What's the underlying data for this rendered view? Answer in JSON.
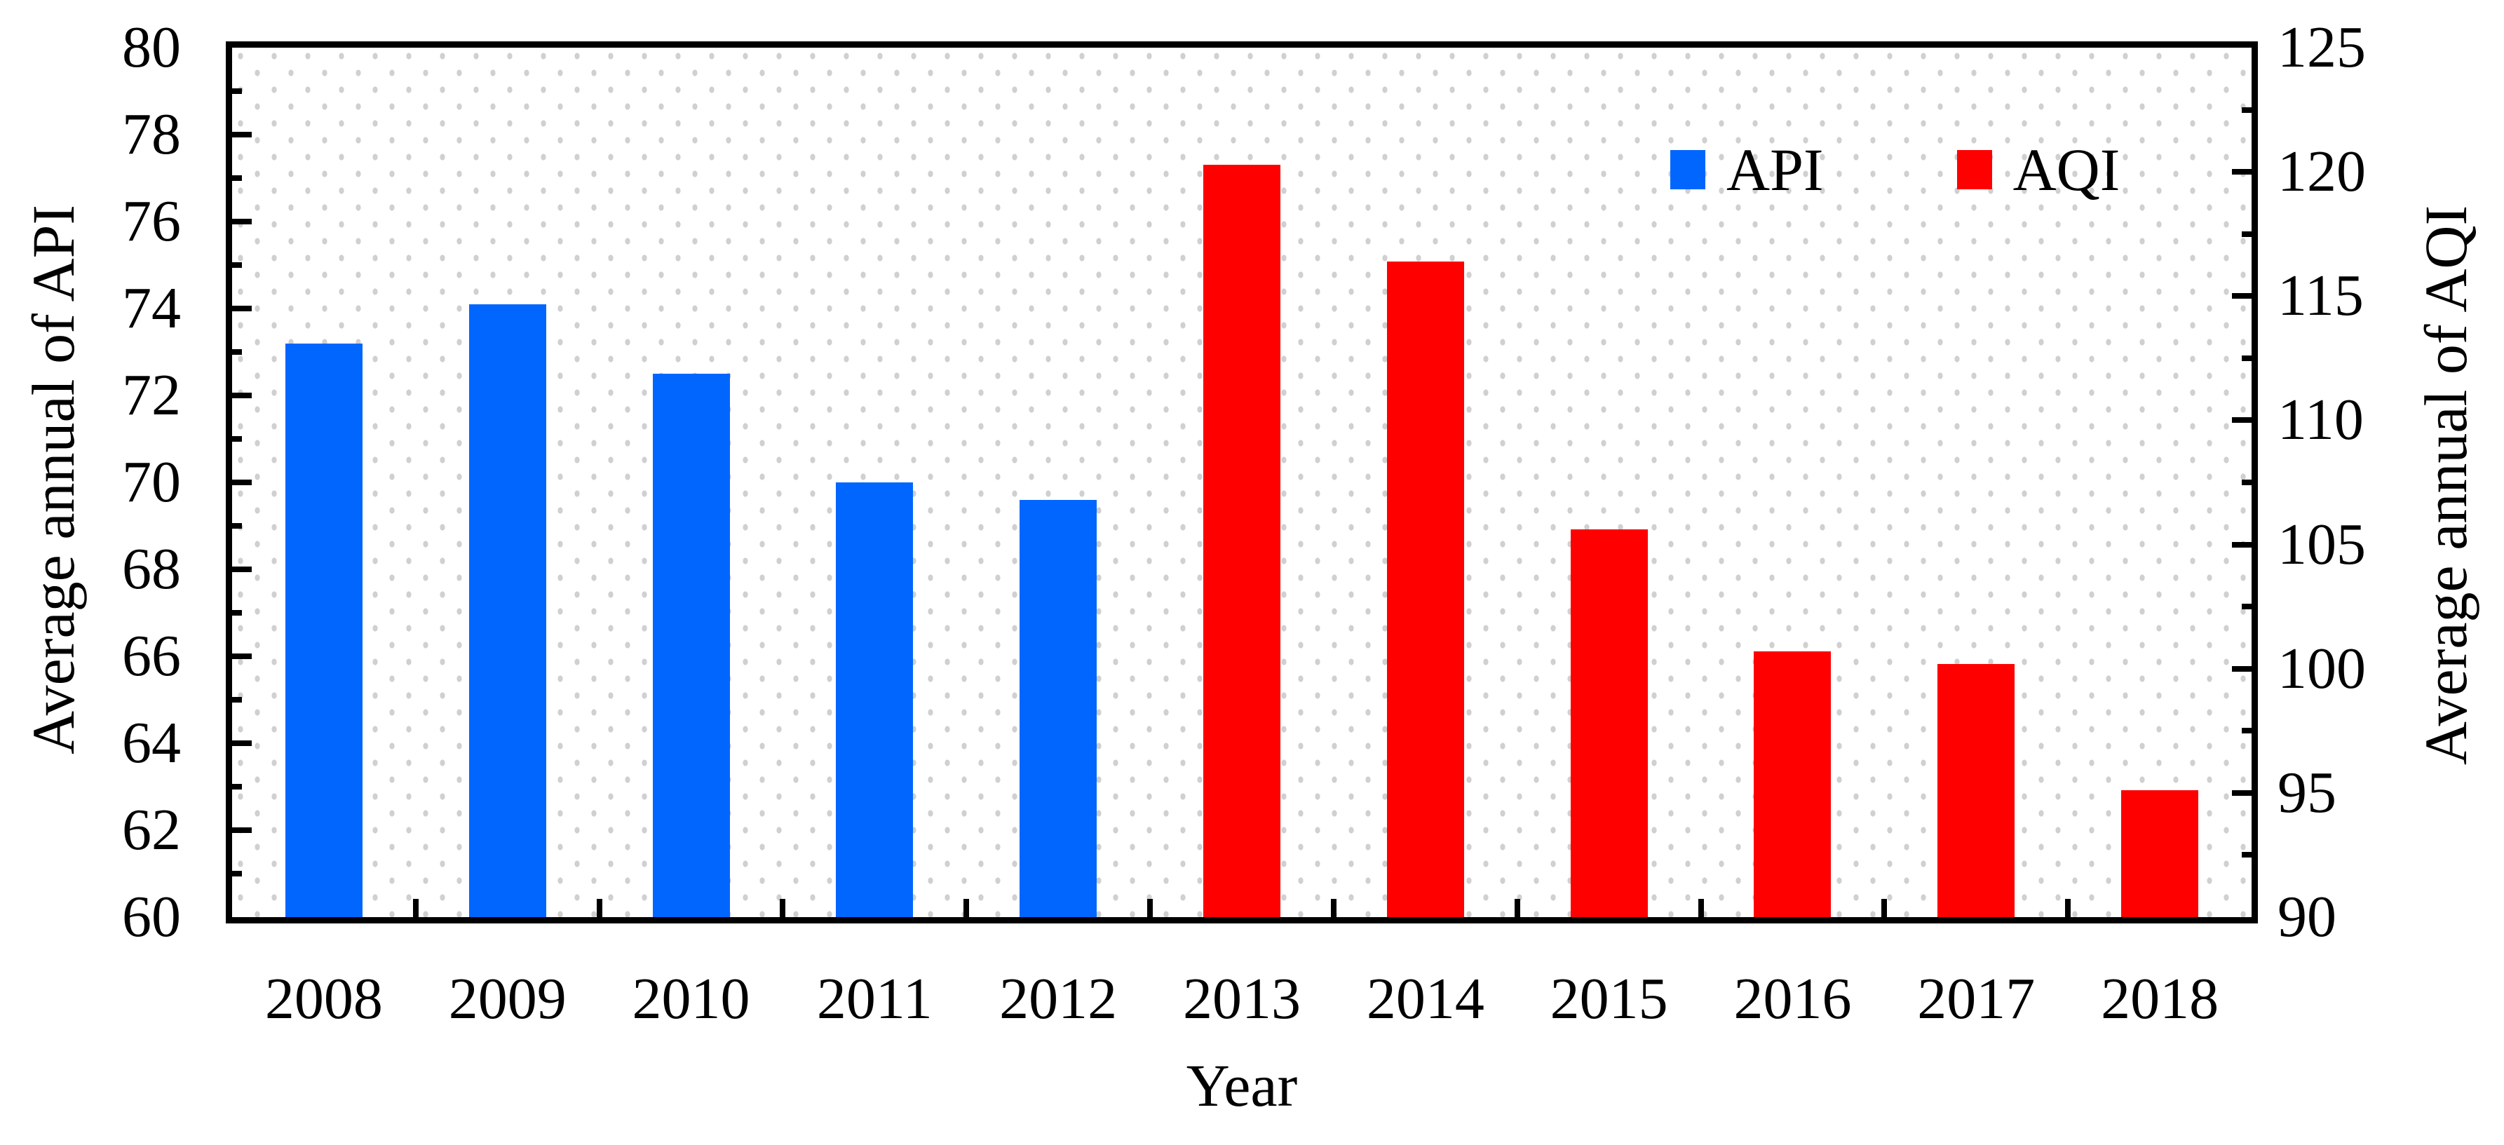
{
  "figure": {
    "background": "#ffffff"
  },
  "legend": {
    "items": [
      {
        "label": "API",
        "color": "#0066FE"
      },
      {
        "label": "AQI",
        "color": "#FE0000"
      }
    ]
  },
  "titles": {
    "x_axis": "Year",
    "y_axis_left": "Average annual of API",
    "y_axis_right": "Average annual of AQI"
  },
  "chart_data": {
    "type": "bar",
    "title": "",
    "xlabel": "Year",
    "ylabel_left": "Average annual of API",
    "ylabel_right": "Average annual of AQI",
    "categories": [
      "2008",
      "2009",
      "2010",
      "2011",
      "2012",
      "2013",
      "2014",
      "2015",
      "2016",
      "2017",
      "2018"
    ],
    "series": [
      {
        "name": "API",
        "axis": "left",
        "color": "#0066FE",
        "values": [
          73.2,
          74.1,
          72.5,
          70.0,
          69.6,
          null,
          null,
          null,
          null,
          null,
          null
        ]
      },
      {
        "name": "AQI",
        "axis": "right",
        "color": "#FE0000",
        "values": [
          null,
          null,
          null,
          null,
          null,
          120.3,
          116.4,
          105.6,
          100.7,
          100.2,
          95.1
        ]
      }
    ],
    "left_axis": {
      "min": 60,
      "max": 80,
      "major_step": 2,
      "minor_step": 1,
      "tick_labels": [
        "60",
        "62",
        "64",
        "66",
        "68",
        "70",
        "72",
        "74",
        "76",
        "78",
        "80"
      ]
    },
    "right_axis": {
      "min": 90,
      "max": 125,
      "major_step": 5,
      "minor_step": 2.5,
      "tick_labels": [
        "90",
        "95",
        "100",
        "105",
        "110",
        "115",
        "120",
        "125"
      ]
    },
    "grid": "light-gray dotted pattern inside plot area",
    "legend_position": "upper-right-inside",
    "bar_width_fraction": 0.42,
    "tick_direction": "in"
  }
}
